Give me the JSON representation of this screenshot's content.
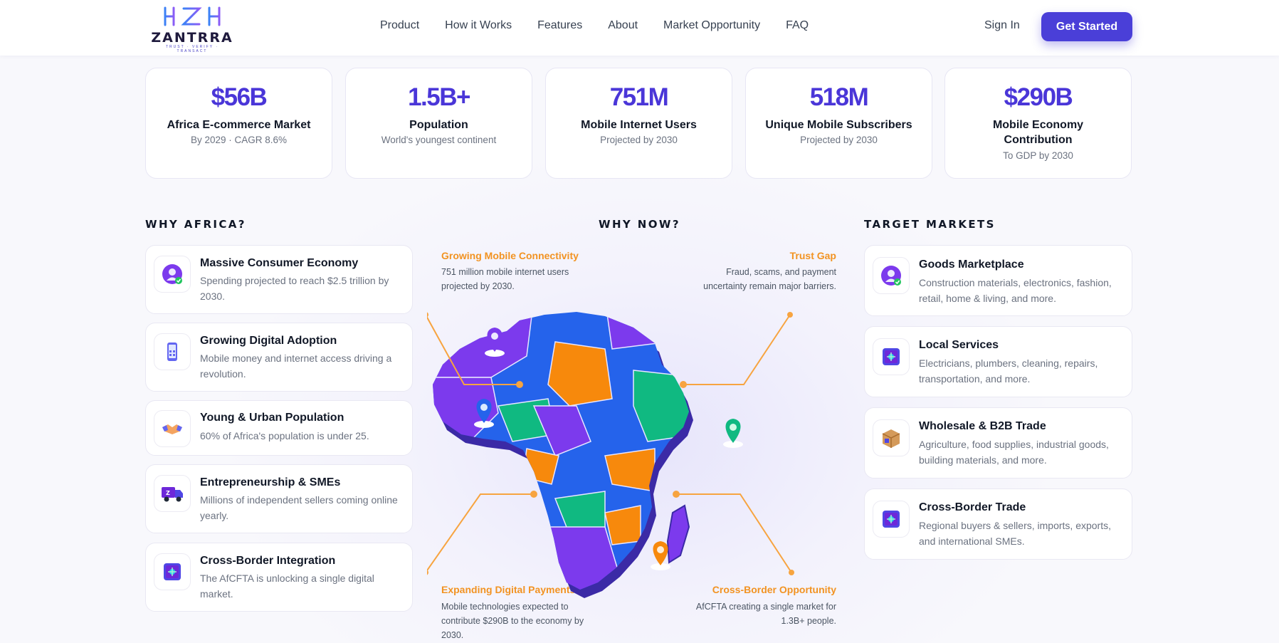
{
  "header": {
    "logo_text": "ZANTRRA",
    "logo_tagline": "TRUST · VERIFY · TRANSACT",
    "nav": [
      "Product",
      "How it Works",
      "Features",
      "About",
      "Market Opportunity",
      "FAQ"
    ],
    "sign_in": "Sign In",
    "cta": "Get Started"
  },
  "stats": [
    {
      "value": "$56B",
      "label": "Africa E-commerce Market",
      "sub": "By 2029 · CAGR 8.6%"
    },
    {
      "value": "1.5B+",
      "label": "Population",
      "sub": "World's youngest continent"
    },
    {
      "value": "751M",
      "label": "Mobile Internet Users",
      "sub": "Projected by 2030"
    },
    {
      "value": "518M",
      "label": "Unique Mobile Subscribers",
      "sub": "Projected by 2030"
    },
    {
      "value": "$290B",
      "label": "Mobile Economy Contribution",
      "sub": "To GDP by 2030"
    }
  ],
  "why_africa": {
    "title": "WHY AFRICA?",
    "items": [
      {
        "icon": "consumer-icon",
        "title": "Massive Consumer Economy",
        "desc": "Spending projected to reach $2.5 trillion by 2030."
      },
      {
        "icon": "mobile-phone-icon",
        "title": "Growing Digital Adoption",
        "desc": "Mobile money and internet access driving a revolution."
      },
      {
        "icon": "handshake-icon",
        "title": "Young & Urban Population",
        "desc": "60% of Africa's population is under 25."
      },
      {
        "icon": "delivery-truck-icon",
        "title": "Entrepreneurship & SMEs",
        "desc": "Millions of independent sellers coming online yearly."
      },
      {
        "icon": "vault-icon",
        "title": "Cross-Border Integration",
        "desc": "The AfCFTA is unlocking a single digital market."
      }
    ]
  },
  "why_now": {
    "title": "WHY NOW?",
    "callouts": [
      {
        "title": "Growing Mobile Connectivity",
        "desc": "751 million mobile internet users projected by 2030."
      },
      {
        "title": "Trust Gap",
        "desc": "Fraud, scams, and payment uncertainty remain major barriers."
      },
      {
        "title": "Expanding Digital Payments",
        "desc": "Mobile technologies expected to contribute $290B to the economy by 2030."
      },
      {
        "title": "Cross-Border Opportunity",
        "desc": "AfCFTA creating a single market for 1.3B+ people."
      }
    ]
  },
  "target_markets": {
    "title": "TARGET MARKETS",
    "items": [
      {
        "icon": "consumer-icon",
        "title": "Goods Marketplace",
        "desc": "Construction materials, electronics, fashion, retail, home & living, and more."
      },
      {
        "icon": "vault-icon",
        "title": "Local Services",
        "desc": "Electricians, plumbers, cleaning, repairs, transportation, and more."
      },
      {
        "icon": "package-box-icon",
        "title": "Wholesale & B2B Trade",
        "desc": "Agriculture, food supplies, industrial goods, building materials, and more."
      },
      {
        "icon": "vault-icon",
        "title": "Cross-Border Trade",
        "desc": "Regional buyers & sellers, imports, exports, and international SMEs."
      }
    ]
  },
  "colors": {
    "primary": "#4a3fd8",
    "accent_orange": "#f29322",
    "map_purple": "#7c3aed",
    "map_blue": "#2563eb",
    "map_orange": "#f7890c",
    "map_green": "#10b981"
  }
}
